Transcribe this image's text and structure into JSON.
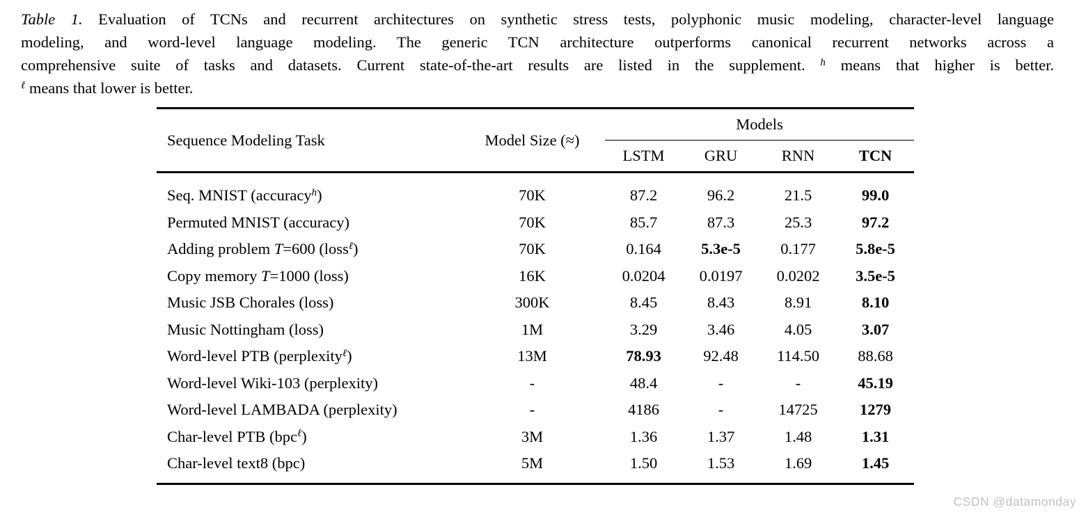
{
  "caption": {
    "lines": [
      {
        "justify": true,
        "segments": [
          {
            "text": "Table 1.",
            "style": "italic"
          },
          {
            "text": " Evaluation of TCNs and recurrent architectures on synthetic stress tests, polyphonic music modeling, character-level language",
            "style": "normal"
          }
        ]
      },
      {
        "justify": true,
        "segments": [
          {
            "text": "modeling, and word-level language modeling. The generic TCN architecture outperforms canonical recurrent networks across a",
            "style": "normal"
          }
        ]
      },
      {
        "justify": true,
        "segments": [
          {
            "text": "comprehensive suite of tasks and datasets. Current state-of-the-art results are listed in the supplement. ",
            "style": "normal"
          },
          {
            "text": "h",
            "style": "sup"
          },
          {
            "text": " means that higher is better.",
            "style": "normal"
          }
        ]
      },
      {
        "justify": false,
        "segments": [
          {
            "text": "ℓ",
            "style": "sup"
          },
          {
            "text": " means that lower is better.",
            "style": "normal"
          }
        ]
      }
    ]
  },
  "table": {
    "col_headers": {
      "task": "Sequence Modeling Task",
      "model_size": "Model Size (≈)",
      "models_group": "Models"
    },
    "model_columns": [
      {
        "label": "LSTM",
        "bold": false
      },
      {
        "label": "GRU",
        "bold": false
      },
      {
        "label": "RNN",
        "bold": false
      },
      {
        "label": "TCN",
        "bold": true
      }
    ],
    "rows": [
      {
        "task": "Seq. MNIST (accuracy^{h})",
        "size": "70K",
        "values": [
          "87.2",
          "96.2",
          "21.5",
          "99.0"
        ],
        "bold": [
          false,
          false,
          false,
          true
        ]
      },
      {
        "task": "Permuted MNIST (accuracy)",
        "size": "70K",
        "values": [
          "85.7",
          "87.3",
          "25.3",
          "97.2"
        ],
        "bold": [
          false,
          false,
          false,
          true
        ]
      },
      {
        "task": "Adding problem *T*=600 (loss^{ℓ})",
        "size": "70K",
        "values": [
          "0.164",
          "5.3e-5",
          "0.177",
          "5.8e-5"
        ],
        "bold": [
          false,
          true,
          false,
          true
        ]
      },
      {
        "task": "Copy memory *T*=1000 (loss)",
        "size": "16K",
        "values": [
          "0.0204",
          "0.0197",
          "0.0202",
          "3.5e-5"
        ],
        "bold": [
          false,
          false,
          false,
          true
        ]
      },
      {
        "task": "Music JSB Chorales (loss)",
        "size": "300K",
        "values": [
          "8.45",
          "8.43",
          "8.91",
          "8.10"
        ],
        "bold": [
          false,
          false,
          false,
          true
        ]
      },
      {
        "task": "Music Nottingham (loss)",
        "size": "1M",
        "values": [
          "3.29",
          "3.46",
          "4.05",
          "3.07"
        ],
        "bold": [
          false,
          false,
          false,
          true
        ]
      },
      {
        "task": "Word-level PTB (perplexity^{ℓ})",
        "size": "13M",
        "values": [
          "78.93",
          "92.48",
          "114.50",
          "88.68"
        ],
        "bold": [
          true,
          false,
          false,
          false
        ]
      },
      {
        "task": "Word-level Wiki-103 (perplexity)",
        "size": "-",
        "values": [
          "48.4",
          "-",
          "-",
          "45.19"
        ],
        "bold": [
          false,
          false,
          false,
          true
        ]
      },
      {
        "task": "Word-level LAMBADA (perplexity)",
        "size": "-",
        "values": [
          "4186",
          "-",
          "14725",
          "1279"
        ],
        "bold": [
          false,
          false,
          false,
          true
        ]
      },
      {
        "task": "Char-level PTB (bpc^{ℓ})",
        "size": "3M",
        "values": [
          "1.36",
          "1.37",
          "1.48",
          "1.31"
        ],
        "bold": [
          false,
          false,
          false,
          true
        ]
      },
      {
        "task": "Char-level text8 (bpc)",
        "size": "5M",
        "values": [
          "1.50",
          "1.53",
          "1.69",
          "1.45"
        ],
        "bold": [
          false,
          false,
          false,
          true
        ]
      }
    ]
  },
  "watermark": {
    "text": "CSDN @datamonday",
    "color": "#c1c1c1"
  }
}
